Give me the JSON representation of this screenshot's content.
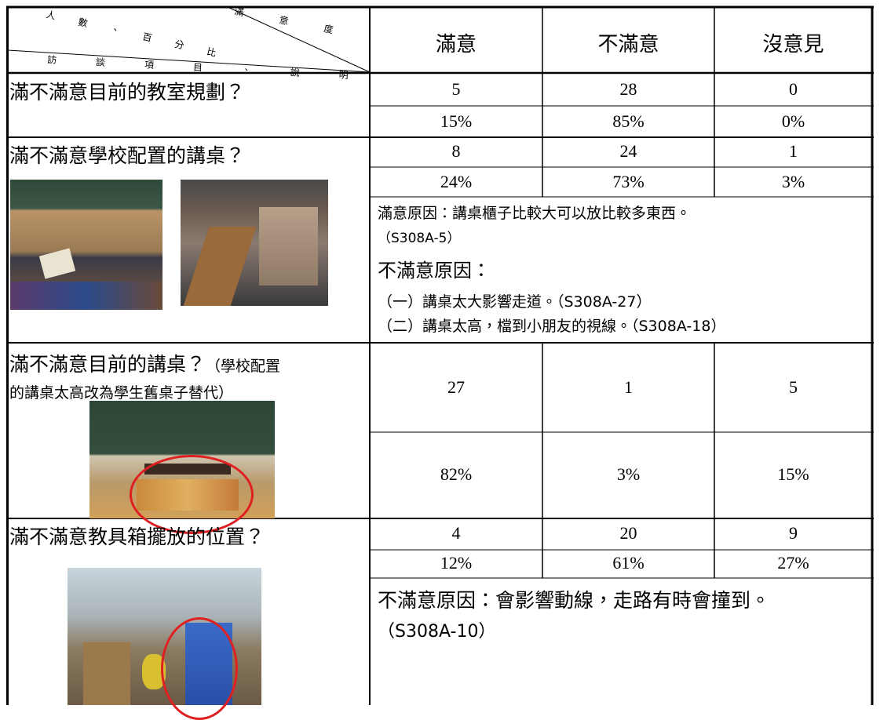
{
  "header": {
    "corner_top": "滿意度",
    "corner_middle": "人數、百分比",
    "corner_bottom": "訪談項目、說明",
    "columns": [
      "滿意",
      "不滿意",
      "沒意見"
    ]
  },
  "items": [
    {
      "question": "滿不滿意目前的教室規劃？",
      "counts": [
        5,
        28,
        0
      ],
      "percents": [
        "15%",
        "85%",
        "0%"
      ]
    },
    {
      "question": "滿不滿意學校配置的講桌？",
      "counts": [
        8,
        24,
        1
      ],
      "percents": [
        "24%",
        "73%",
        "3%"
      ],
      "notes": [
        "滿意原因：講桌櫃子比較大可以放比較多東西。",
        "（S308A-5）",
        "不滿意原因：",
        "（一）講桌太大影響走道。（S308A-27）",
        "（二）講桌太高，檔到小朋友的視線。（S308A-18）"
      ]
    },
    {
      "question": "滿不滿意目前的講桌？",
      "question_note_1": "（學校配置",
      "question_note_2": "的講桌太高改為學生舊桌子替代）",
      "counts": [
        27,
        1,
        5
      ],
      "percents": [
        "82%",
        "3%",
        "15%"
      ]
    },
    {
      "question": "滿不滿意教具箱擺放的位置？",
      "counts": [
        4,
        20,
        9
      ],
      "percents": [
        "12%",
        "61%",
        "27%"
      ],
      "notes": [
        "不滿意原因：會影響動線，走路有時會撞到。",
        "（S308A-10）"
      ]
    }
  ]
}
